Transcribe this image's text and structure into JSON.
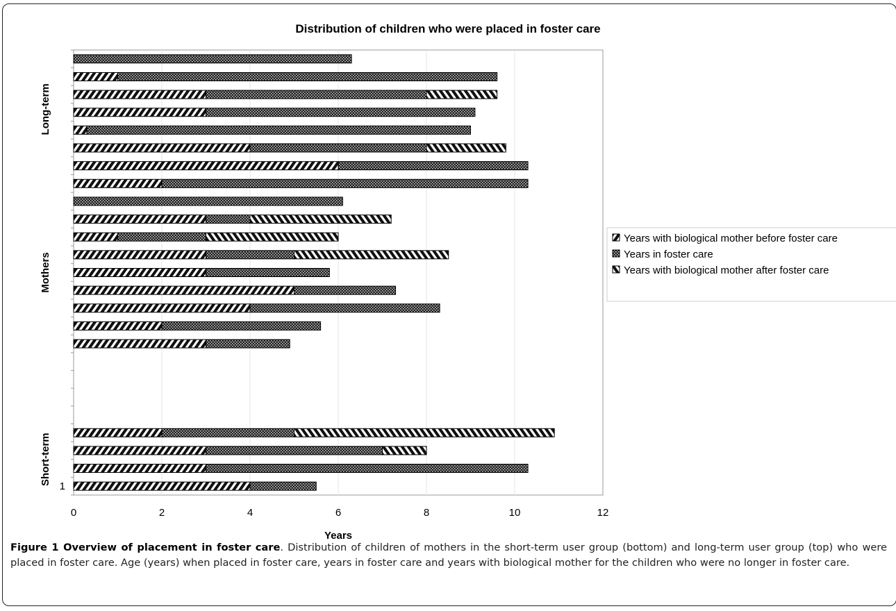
{
  "chart_data": {
    "type": "bar",
    "orientation": "horizontal",
    "stacked": true,
    "title": "Distribution of children who were placed in foster care",
    "xlabel": "Years",
    "xlim": [
      0,
      12
    ],
    "xticks": [
      0,
      2,
      4,
      6,
      8,
      10,
      12
    ],
    "grid": false,
    "legend_position": "right",
    "group_labels": [
      "Short-term",
      "Mothers",
      "Long-term"
    ],
    "y_tick_labels": [
      {
        "row": 1,
        "label": "1"
      }
    ],
    "series": [
      {
        "name": "Years with biological mother before foster care",
        "pattern": "diagonal-hatch",
        "values": [
          4,
          3,
          3,
          2,
          3,
          2,
          4,
          5,
          3,
          3,
          1,
          3,
          0,
          2,
          6,
          4,
          0.3,
          3,
          3,
          1,
          0
        ]
      },
      {
        "name": "Years in foster care",
        "pattern": "dark-dotted",
        "values": [
          1.5,
          7.3,
          4,
          3,
          1.9,
          3.6,
          4.3,
          2.3,
          2.8,
          2,
          2,
          1,
          6.1,
          8.3,
          4.3,
          4,
          8.7,
          6.1,
          5,
          8.6,
          6.3
        ]
      },
      {
        "name": "Years with biological mother after foster care",
        "pattern": "reverse-diagonal-hatch",
        "values": [
          0,
          0,
          1,
          5.9,
          0,
          0,
          0,
          0,
          0,
          3.5,
          3,
          3.2,
          0,
          0,
          0,
          1.8,
          0,
          0,
          1.6,
          0,
          0
        ]
      }
    ],
    "rows": [
      {
        "row": 1,
        "group": "Short-term"
      },
      {
        "row": 2,
        "group": "Short-term"
      },
      {
        "row": 3,
        "group": "Short-term"
      },
      {
        "row": 4,
        "group": "Short-term"
      },
      {
        "row": 5,
        "group": "Long-term"
      },
      {
        "row": 6,
        "group": "Long-term"
      },
      {
        "row": 7,
        "group": "Long-term"
      },
      {
        "row": 8,
        "group": "Long-term"
      },
      {
        "row": 9,
        "group": "Long-term"
      },
      {
        "row": 10,
        "group": "Long-term"
      },
      {
        "row": 11,
        "group": "Long-term"
      },
      {
        "row": 12,
        "group": "Long-term"
      },
      {
        "row": 13,
        "group": "Long-term"
      },
      {
        "row": 14,
        "group": "Long-term"
      },
      {
        "row": 15,
        "group": "Long-term"
      },
      {
        "row": 16,
        "group": "Long-term"
      },
      {
        "row": 17,
        "group": "Long-term"
      },
      {
        "row": 18,
        "group": "Long-term"
      },
      {
        "row": 19,
        "group": "Long-term"
      },
      {
        "row": 20,
        "group": "Long-term"
      },
      {
        "row": 21,
        "group": "Long-term"
      }
    ]
  },
  "caption": {
    "title": "Figure 1 Overview of placement in foster care",
    "body": ". Distribution of children of mothers in the short-term user group (bottom) and long-term user group (top) who were placed in foster care. Age (years) when placed in foster care, years in foster care and years with biological mother for the children who were no longer in foster care."
  }
}
